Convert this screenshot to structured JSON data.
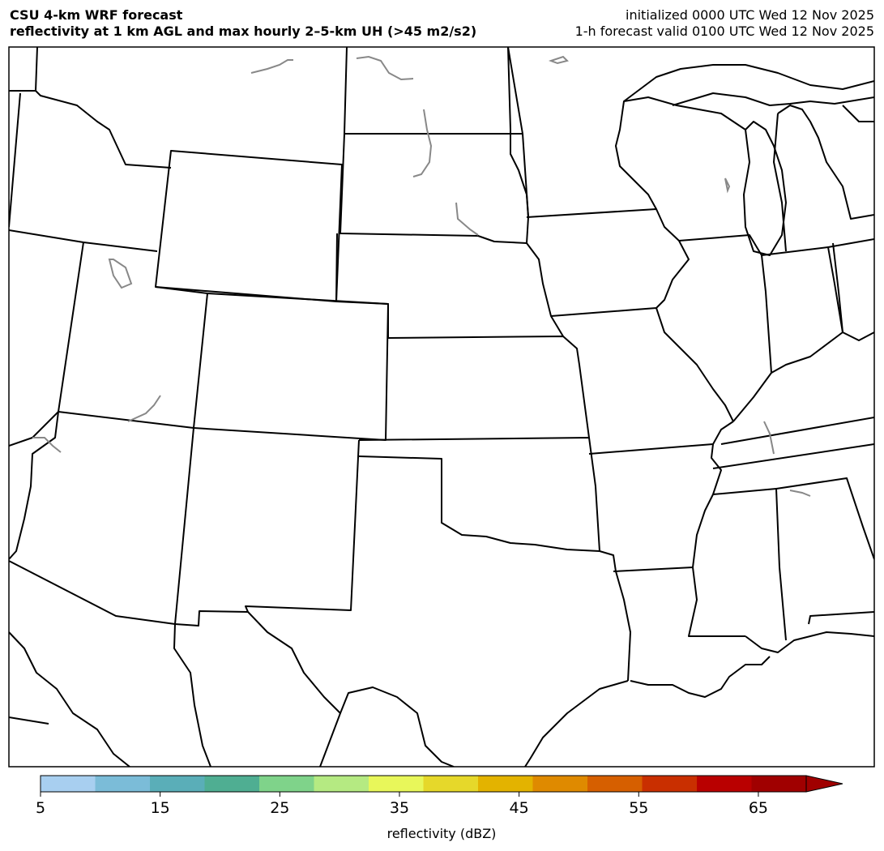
{
  "header": {
    "title_line1": "CSU 4-km WRF forecast",
    "title_line2": "reflectivity at 1 km AGL and max hourly 2–5-km UH (>45 m2/s2)",
    "init_line": "initialized 0000 UTC Wed 12 Nov 2025",
    "valid_line": "1-h forecast valid 0100 UTC Wed 12 Nov 2025"
  },
  "map": {
    "region": "central United States",
    "state_border_color": "#000000",
    "water_color": "#888888",
    "reflectivity_echoes": "none"
  },
  "colorbar": {
    "label": "reflectivity (dBZ)",
    "min": 5,
    "max": 69,
    "extend": "max",
    "ticks": [
      "5",
      "15",
      "25",
      "35",
      "45",
      "55",
      "65"
    ],
    "colors": [
      "#a8cff0",
      "#7bbcd8",
      "#5aaeb8",
      "#4fae92",
      "#7fd38a",
      "#b5ea82",
      "#e8f75a",
      "#e6d82a",
      "#e3b300",
      "#df8a00",
      "#d65f00",
      "#c92f00",
      "#b90000",
      "#a00000"
    ]
  }
}
